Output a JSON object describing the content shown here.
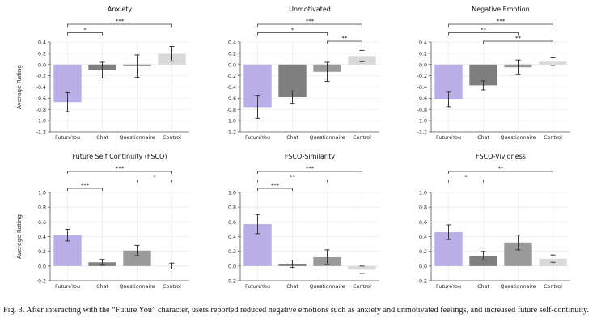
{
  "chart_data": [
    {
      "type": "bar",
      "title": "Anxiety",
      "ylabel": "Average Rating",
      "categories": [
        "FutureYou",
        "Chat",
        "Questionnaire",
        "Control"
      ],
      "values": [
        -0.67,
        -0.1,
        -0.03,
        0.19
      ],
      "errors": [
        0.17,
        0.14,
        0.2,
        0.13
      ],
      "ylim": [
        -1.2,
        0.4
      ],
      "yticks": [
        "-1.2",
        "-1.0",
        "-0.8",
        "-0.6",
        "-0.4",
        "-0.2",
        "0.0",
        "0.2",
        "0.4"
      ],
      "significance": [
        {
          "from": 0,
          "to": 1,
          "label": "*"
        },
        {
          "from": 0,
          "to": 3,
          "label": "***"
        }
      ]
    },
    {
      "type": "bar",
      "title": "Unmotivated",
      "ylabel": "",
      "categories": [
        "FutureYou",
        "Chat",
        "Questionnaire",
        "Control"
      ],
      "values": [
        -0.76,
        -0.58,
        -0.13,
        0.15
      ],
      "errors": [
        0.2,
        0.11,
        0.17,
        0.1
      ],
      "ylim": [
        -1.2,
        0.4
      ],
      "yticks": [
        "-1.2",
        "-1.0",
        "-0.8",
        "-0.6",
        "-0.4",
        "-0.2",
        "0.0",
        "0.2",
        "0.4"
      ],
      "significance": [
        {
          "from": 2,
          "to": 3,
          "label": "**"
        },
        {
          "from": 0,
          "to": 2,
          "label": "*"
        },
        {
          "from": 0,
          "to": 3,
          "label": "***"
        }
      ]
    },
    {
      "type": "bar",
      "title": "Negative Emotion",
      "ylabel": "",
      "categories": [
        "FutureYou",
        "Chat",
        "Questionnaire",
        "Control"
      ],
      "values": [
        -0.62,
        -0.37,
        -0.05,
        0.05
      ],
      "errors": [
        0.13,
        0.08,
        0.13,
        0.07
      ],
      "ylim": [
        -1.2,
        0.4
      ],
      "yticks": [
        "-1.2",
        "-1.0",
        "-0.8",
        "-0.6",
        "-0.4",
        "-0.2",
        "0.0",
        "0.2",
        "0.4"
      ],
      "significance": [
        {
          "from": 1,
          "to": 3,
          "label": "**"
        },
        {
          "from": 0,
          "to": 2,
          "label": "**"
        },
        {
          "from": 0,
          "to": 3,
          "label": "***"
        }
      ]
    },
    {
      "type": "bar",
      "title": "Future Self Continuity (FSCQ)",
      "ylabel": "Average Rating",
      "categories": [
        "FutureYou",
        "Chat",
        "Questionnaire",
        "Control"
      ],
      "values": [
        0.42,
        0.05,
        0.21,
        0.0
      ],
      "errors": [
        0.08,
        0.04,
        0.07,
        0.04
      ],
      "ylim": [
        -0.2,
        1.0
      ],
      "yticks": [
        "-0.2",
        "0.0",
        "0.2",
        "0.4",
        "0.6",
        "0.8",
        "1.0"
      ],
      "significance": [
        {
          "from": 0,
          "to": 1,
          "label": "***"
        },
        {
          "from": 2,
          "to": 3,
          "label": "*"
        },
        {
          "from": 0,
          "to": 3,
          "label": "***"
        }
      ]
    },
    {
      "type": "bar",
      "title": "FSCQ-Similarity",
      "ylabel": "",
      "categories": [
        "FutureYou",
        "Chat",
        "Questionnaire",
        "Control"
      ],
      "values": [
        0.57,
        0.03,
        0.12,
        -0.05
      ],
      "errors": [
        0.13,
        0.05,
        0.1,
        0.05
      ],
      "ylim": [
        -0.2,
        1.0
      ],
      "yticks": [
        "-0.2",
        "0.0",
        "0.2",
        "0.4",
        "0.6",
        "0.8",
        "1.0"
      ],
      "significance": [
        {
          "from": 0,
          "to": 1,
          "label": "***"
        },
        {
          "from": 0,
          "to": 2,
          "label": "**"
        },
        {
          "from": 0,
          "to": 3,
          "label": "***"
        }
      ]
    },
    {
      "type": "bar",
      "title": "FSCQ-Vividness",
      "ylabel": "",
      "categories": [
        "FutureYou",
        "Chat",
        "Questionnaire",
        "Control"
      ],
      "values": [
        0.46,
        0.14,
        0.32,
        0.1
      ],
      "errors": [
        0.1,
        0.06,
        0.1,
        0.05
      ],
      "ylim": [
        -0.2,
        1.0
      ],
      "yticks": [
        "-0.2",
        "0.0",
        "0.2",
        "0.4",
        "0.6",
        "0.8",
        "1.0"
      ],
      "significance": [
        {
          "from": 0,
          "to": 1,
          "label": "*"
        },
        {
          "from": 0,
          "to": 3,
          "label": "**"
        }
      ]
    }
  ],
  "colors": {
    "FutureYou": "#b9aee8",
    "Chat": "#7f7f7f",
    "Questionnaire": "#9a9a9a",
    "Control": "#d9d9d9",
    "errorbar": "#333333",
    "grid": "#ececec",
    "axis": "#555555",
    "text": "#222222"
  },
  "caption": "Fig. 3.  After interacting with the “Future You” character, users reported reduced negative emotions such as anxiety and unmotivated feelings, and increased future self-continuity."
}
